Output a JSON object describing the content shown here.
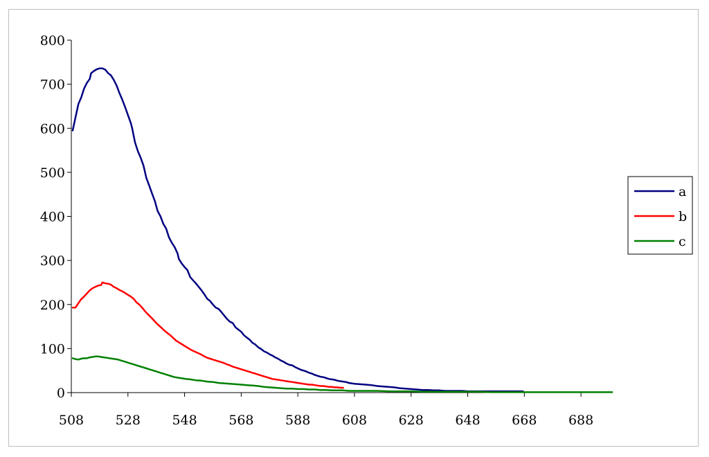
{
  "chart_data": {
    "type": "line",
    "title": "",
    "xlabel": "",
    "ylabel": "",
    "xlim": [
      508,
      698
    ],
    "ylim": [
      0,
      800
    ],
    "xticks": [
      508,
      528,
      548,
      568,
      588,
      608,
      628,
      648,
      668,
      688
    ],
    "yticks": [
      0,
      100,
      200,
      300,
      400,
      500,
      600,
      700,
      800
    ],
    "grid": false,
    "legend": "right",
    "series": [
      {
        "name": "a",
        "color": "#000080",
        "points": [
          [
            508.5,
            595
          ],
          [
            509.5,
            625
          ],
          [
            510.5,
            655
          ],
          [
            511.5,
            670
          ],
          [
            512.5,
            690
          ],
          [
            513.5,
            703
          ],
          [
            514.5,
            712
          ],
          [
            515,
            725
          ],
          [
            516,
            730
          ],
          [
            517,
            734
          ],
          [
            518,
            736
          ],
          [
            519,
            736
          ],
          [
            520,
            733
          ],
          [
            521,
            725
          ],
          [
            522,
            720
          ],
          [
            523,
            710
          ],
          [
            524,
            697
          ],
          [
            525,
            680
          ],
          [
            526,
            665
          ],
          [
            527,
            648
          ],
          [
            528,
            630
          ],
          [
            529,
            612
          ],
          [
            529.5,
            600
          ],
          [
            530.5,
            568
          ],
          [
            531.5,
            548
          ],
          [
            532.5,
            533
          ],
          [
            533.5,
            515
          ],
          [
            534.5,
            487
          ],
          [
            535.5,
            470
          ],
          [
            536.5,
            452
          ],
          [
            537.5,
            435
          ],
          [
            538.5,
            412
          ],
          [
            539.5,
            400
          ],
          [
            540.5,
            383
          ],
          [
            541.5,
            372
          ],
          [
            542.5,
            352
          ],
          [
            543.5,
            340
          ],
          [
            544.5,
            330
          ],
          [
            545.5,
            316
          ],
          [
            546,
            303
          ],
          [
            547,
            293
          ],
          [
            548,
            285
          ],
          [
            549,
            278
          ],
          [
            550,
            262
          ],
          [
            551,
            255
          ],
          [
            552,
            248
          ],
          [
            553,
            240
          ],
          [
            554,
            232
          ],
          [
            555,
            223
          ],
          [
            556,
            213
          ],
          [
            557,
            208
          ],
          [
            558,
            200
          ],
          [
            559,
            193
          ],
          [
            560,
            190
          ],
          [
            561,
            183
          ],
          [
            562,
            175
          ],
          [
            563,
            167
          ],
          [
            564,
            161
          ],
          [
            565,
            158
          ],
          [
            566,
            148
          ],
          [
            567,
            143
          ],
          [
            568,
            138
          ],
          [
            569,
            130
          ],
          [
            570,
            125
          ],
          [
            571,
            120
          ],
          [
            572,
            113
          ],
          [
            573,
            109
          ],
          [
            574,
            103
          ],
          [
            575,
            99
          ],
          [
            576,
            94
          ],
          [
            577,
            91
          ],
          [
            578,
            87
          ],
          [
            579,
            84
          ],
          [
            580,
            80
          ],
          [
            581,
            77
          ],
          [
            582,
            73
          ],
          [
            583,
            70
          ],
          [
            584,
            66
          ],
          [
            585,
            63
          ],
          [
            586,
            62
          ],
          [
            587,
            58
          ],
          [
            588,
            55
          ],
          [
            589,
            52
          ],
          [
            590,
            50
          ],
          [
            591,
            48
          ],
          [
            592,
            45
          ],
          [
            593,
            43
          ],
          [
            594,
            40
          ],
          [
            595,
            38
          ],
          [
            596,
            36
          ],
          [
            597,
            35
          ],
          [
            598,
            33
          ],
          [
            599,
            31
          ],
          [
            600,
            30
          ],
          [
            601,
            29
          ],
          [
            602,
            27
          ],
          [
            603,
            26
          ],
          [
            604,
            25
          ],
          [
            605,
            24
          ],
          [
            606,
            22
          ],
          [
            607,
            21
          ],
          [
            608,
            20
          ],
          [
            610,
            19
          ],
          [
            612,
            18
          ],
          [
            614,
            17
          ],
          [
            616,
            15
          ],
          [
            618,
            14
          ],
          [
            620,
            13
          ],
          [
            622,
            12
          ],
          [
            624,
            10
          ],
          [
            626,
            9
          ],
          [
            628,
            8
          ],
          [
            630,
            7
          ],
          [
            632,
            6
          ],
          [
            634,
            6
          ],
          [
            636,
            5
          ],
          [
            638,
            5
          ],
          [
            640,
            4
          ],
          [
            642,
            4
          ],
          [
            644,
            4
          ],
          [
            646,
            4
          ],
          [
            648,
            3
          ],
          [
            650,
            3
          ],
          [
            652,
            3
          ],
          [
            654,
            3
          ],
          [
            656,
            3
          ],
          [
            658,
            3
          ],
          [
            660,
            3
          ],
          [
            662,
            3
          ],
          [
            664,
            3
          ],
          [
            666,
            3
          ],
          [
            667.5,
            3
          ]
        ]
      },
      {
        "name": "b",
        "color": "#ff0000",
        "points": [
          [
            508.5,
            193
          ],
          [
            509.5,
            193
          ],
          [
            510.5,
            203
          ],
          [
            511.5,
            212
          ],
          [
            512.5,
            218
          ],
          [
            513.5,
            225
          ],
          [
            514.5,
            232
          ],
          [
            515.5,
            237
          ],
          [
            516.5,
            240
          ],
          [
            517.5,
            243
          ],
          [
            518.5,
            244
          ],
          [
            519,
            250
          ],
          [
            520,
            248
          ],
          [
            521,
            247
          ],
          [
            522,
            245
          ],
          [
            523,
            240
          ],
          [
            524,
            237
          ],
          [
            525,
            233
          ],
          [
            526,
            230
          ],
          [
            527,
            226
          ],
          [
            528,
            222
          ],
          [
            529,
            218
          ],
          [
            530,
            213
          ],
          [
            531,
            205
          ],
          [
            532,
            200
          ],
          [
            533,
            193
          ],
          [
            534,
            185
          ],
          [
            535,
            178
          ],
          [
            536,
            172
          ],
          [
            537,
            165
          ],
          [
            538,
            158
          ],
          [
            539,
            152
          ],
          [
            540,
            146
          ],
          [
            541,
            140
          ],
          [
            542,
            135
          ],
          [
            543,
            130
          ],
          [
            544,
            124
          ],
          [
            545,
            118
          ],
          [
            546,
            114
          ],
          [
            547,
            110
          ],
          [
            548,
            106
          ],
          [
            549,
            102
          ],
          [
            550,
            98
          ],
          [
            551,
            95
          ],
          [
            552,
            92
          ],
          [
            553,
            89
          ],
          [
            554,
            86
          ],
          [
            555,
            82
          ],
          [
            556,
            79
          ],
          [
            557,
            77
          ],
          [
            558,
            75
          ],
          [
            559,
            73
          ],
          [
            560,
            71
          ],
          [
            561,
            69
          ],
          [
            562,
            67
          ],
          [
            563,
            64
          ],
          [
            564,
            62
          ],
          [
            565,
            59
          ],
          [
            566,
            57
          ],
          [
            567,
            55
          ],
          [
            568,
            53
          ],
          [
            569,
            51
          ],
          [
            570,
            49
          ],
          [
            571,
            47
          ],
          [
            572,
            45
          ],
          [
            573,
            43
          ],
          [
            574,
            41
          ],
          [
            575,
            39
          ],
          [
            576,
            37
          ],
          [
            577,
            35
          ],
          [
            578,
            33
          ],
          [
            579,
            31
          ],
          [
            580,
            30
          ],
          [
            581,
            29
          ],
          [
            582,
            28
          ],
          [
            583,
            27
          ],
          [
            584,
            26
          ],
          [
            585,
            25
          ],
          [
            586,
            24
          ],
          [
            587,
            23
          ],
          [
            588,
            22
          ],
          [
            589,
            21
          ],
          [
            590,
            20
          ],
          [
            591,
            19
          ],
          [
            592,
            18
          ],
          [
            593,
            18
          ],
          [
            594,
            17
          ],
          [
            595,
            16
          ],
          [
            596,
            15
          ],
          [
            597,
            15
          ],
          [
            598,
            14
          ],
          [
            599,
            13
          ],
          [
            600,
            13
          ],
          [
            601,
            12
          ],
          [
            602,
            12
          ],
          [
            603,
            11
          ],
          [
            604,
            11
          ]
        ]
      },
      {
        "name": "c",
        "color": "#008000",
        "points": [
          [
            508.5,
            78
          ],
          [
            509.5,
            76
          ],
          [
            510.5,
            75
          ],
          [
            511.5,
            77
          ],
          [
            512.5,
            78
          ],
          [
            513.5,
            78
          ],
          [
            514.5,
            80
          ],
          [
            515.5,
            81
          ],
          [
            516.5,
            82
          ],
          [
            517.5,
            82
          ],
          [
            518.5,
            81
          ],
          [
            519.5,
            80
          ],
          [
            520.5,
            79
          ],
          [
            521.5,
            78
          ],
          [
            522.5,
            77
          ],
          [
            523.5,
            76
          ],
          [
            524.5,
            75
          ],
          [
            525.5,
            73
          ],
          [
            526.5,
            71
          ],
          [
            527.5,
            69
          ],
          [
            528.5,
            67
          ],
          [
            529.5,
            65
          ],
          [
            530.5,
            63
          ],
          [
            531.5,
            61
          ],
          [
            532.5,
            59
          ],
          [
            533.5,
            57
          ],
          [
            534.5,
            55
          ],
          [
            535.5,
            53
          ],
          [
            536.5,
            51
          ],
          [
            537.5,
            49
          ],
          [
            538.5,
            47
          ],
          [
            539.5,
            45
          ],
          [
            540.5,
            43
          ],
          [
            541.5,
            41
          ],
          [
            542.5,
            39
          ],
          [
            543.5,
            37
          ],
          [
            544.5,
            35
          ],
          [
            545.5,
            34
          ],
          [
            546.5,
            33
          ],
          [
            547.5,
            32
          ],
          [
            548.5,
            31
          ],
          [
            550,
            30
          ],
          [
            552,
            28
          ],
          [
            554,
            27
          ],
          [
            556,
            25
          ],
          [
            558,
            24
          ],
          [
            560,
            22
          ],
          [
            562,
            21
          ],
          [
            564,
            20
          ],
          [
            566,
            19
          ],
          [
            568,
            18
          ],
          [
            570,
            17
          ],
          [
            572,
            16
          ],
          [
            574,
            15
          ],
          [
            576,
            13
          ],
          [
            578,
            12
          ],
          [
            580,
            11
          ],
          [
            582,
            10
          ],
          [
            584,
            9
          ],
          [
            586,
            9
          ],
          [
            588,
            8
          ],
          [
            590,
            8
          ],
          [
            592,
            7
          ],
          [
            594,
            7
          ],
          [
            596,
            6
          ],
          [
            598,
            6
          ],
          [
            600,
            5
          ],
          [
            602,
            5
          ],
          [
            604,
            5
          ],
          [
            606,
            4
          ],
          [
            608,
            4
          ],
          [
            612,
            4
          ],
          [
            616,
            4
          ],
          [
            620,
            3
          ],
          [
            624,
            3
          ],
          [
            628,
            3
          ],
          [
            632,
            2
          ],
          [
            636,
            2
          ],
          [
            640,
            2
          ],
          [
            644,
            2
          ],
          [
            648,
            2
          ],
          [
            652,
            2
          ],
          [
            656,
            1
          ],
          [
            660,
            1
          ],
          [
            664,
            1
          ],
          [
            668,
            1
          ],
          [
            672,
            1
          ],
          [
            676,
            1
          ],
          [
            680,
            1
          ],
          [
            684,
            1
          ],
          [
            688,
            1
          ],
          [
            692,
            1
          ],
          [
            696,
            1
          ],
          [
            699,
            1
          ]
        ]
      }
    ]
  }
}
